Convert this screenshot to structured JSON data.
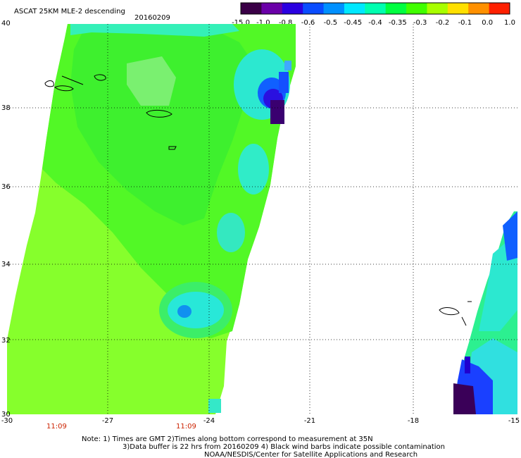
{
  "header": {
    "title": "ASCAT 25KM MLE-2 descending",
    "date": "20160209"
  },
  "colorbar": {
    "labels": [
      "-15.0",
      "-1.0",
      "-0.8",
      "-0.6",
      "-0.5",
      "-0.45",
      "-0.4",
      "-0.35",
      "-0.3",
      "-0.2",
      "-0.1",
      "0.0",
      "1.0"
    ],
    "colors": [
      "#3a0046",
      "#6a00a8",
      "#2a00e0",
      "#0a4cff",
      "#0090ff",
      "#00e8ff",
      "#00ffb0",
      "#00ff40",
      "#40ff00",
      "#a8ff00",
      "#ffe000",
      "#ff9000",
      "#ff2000"
    ]
  },
  "axes": {
    "lat_labels": [
      "40",
      "38",
      "36",
      "34",
      "32",
      "30"
    ],
    "lon_labels": [
      "-30",
      "-27",
      "-24",
      "-21",
      "-18",
      "-15"
    ]
  },
  "swath_times": [
    "11:09",
    "11:09"
  ],
  "notes": {
    "line1": "Note: 1) Times are GMT 2)Times along bottom correspond to measurement at 35N",
    "line2": "3)Data buffer is 22 hrs from 20160209 4) Black wind barbs indicate possible contamination",
    "line3": "NOAA/NESDIS/Center for Satellite Applications and Research"
  }
}
